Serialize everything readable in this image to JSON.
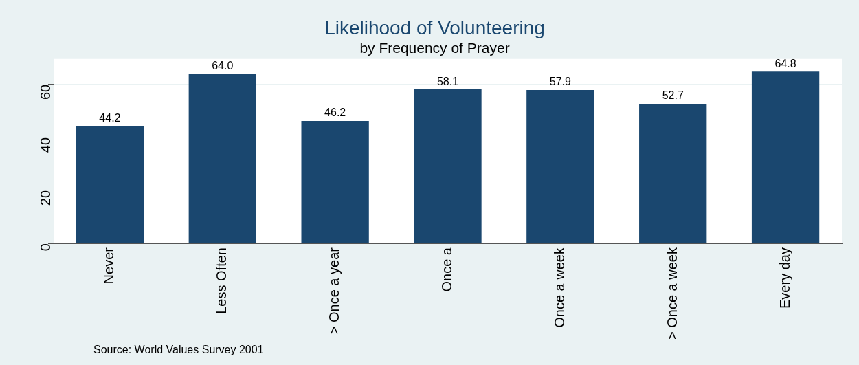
{
  "chart_data": {
    "type": "bar",
    "title": "Likelihood of Volunteering",
    "subtitle": "by Frequency of Prayer",
    "categories": [
      "Never",
      "Less Often",
      "> Once a year",
      "Once a",
      "Once a week",
      "> Once a week",
      "Every day"
    ],
    "values": [
      44.2,
      64.0,
      46.2,
      58.1,
      57.9,
      52.7,
      64.8
    ],
    "color": "#1a476f",
    "value_labels": [
      "44.2",
      "64.0",
      "46.2",
      "58.1",
      "57.9",
      "52.7",
      "64.8"
    ],
    "ylim": [
      0,
      69.6
    ],
    "yticks": [
      0,
      20,
      40,
      60
    ],
    "grid": "y",
    "legend": false,
    "annotations": [
      "Source: World Values Survey 2001"
    ]
  }
}
